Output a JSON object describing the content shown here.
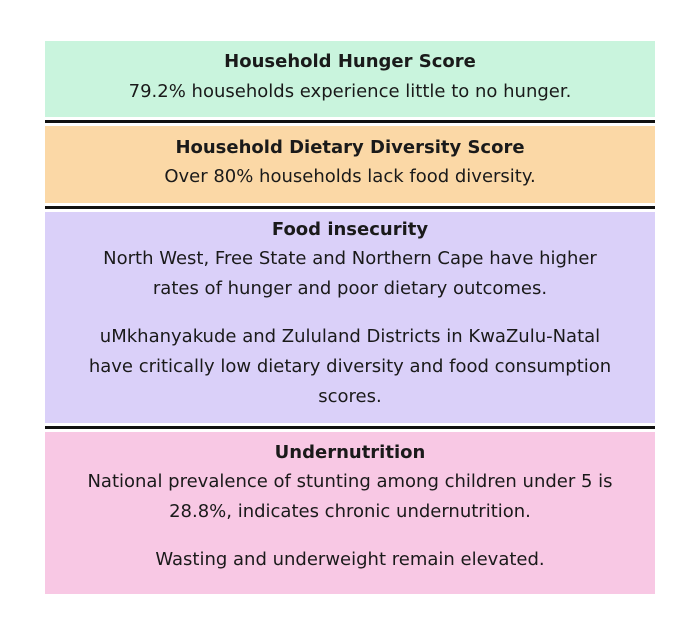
{
  "colors": {
    "hunger_bg": "#c9f4dd",
    "dietary_bg": "#fbd8a6",
    "insecurity_bg": "#dad0f9",
    "undernutrition_bg": "#f8c8e4",
    "divider": "#111111"
  },
  "hunger": {
    "title": "Household Hunger Score",
    "line1": "79.2% households experience little to no hunger."
  },
  "dietary": {
    "title": "Household Dietary Diversity Score",
    "line1": "Over 80% households lack food diversity."
  },
  "insecurity": {
    "title": "Food insecurity",
    "para1_line1": "North West, Free State and Northern Cape have higher",
    "para1_line2": "rates of hunger and poor dietary outcomes.",
    "para2_line1": "uMkhanyakude and Zululand Districts in KwaZulu-Natal",
    "para2_line2": "have critically low dietary diversity and food consumption",
    "para2_line3": "scores."
  },
  "undernutrition": {
    "title": "Undernutrition",
    "para1_line1": "National prevalence of stunting among children under 5 is",
    "para1_line2": "28.8%, indicates chronic undernutrition.",
    "para2_line1": "Wasting and underweight remain elevated."
  }
}
